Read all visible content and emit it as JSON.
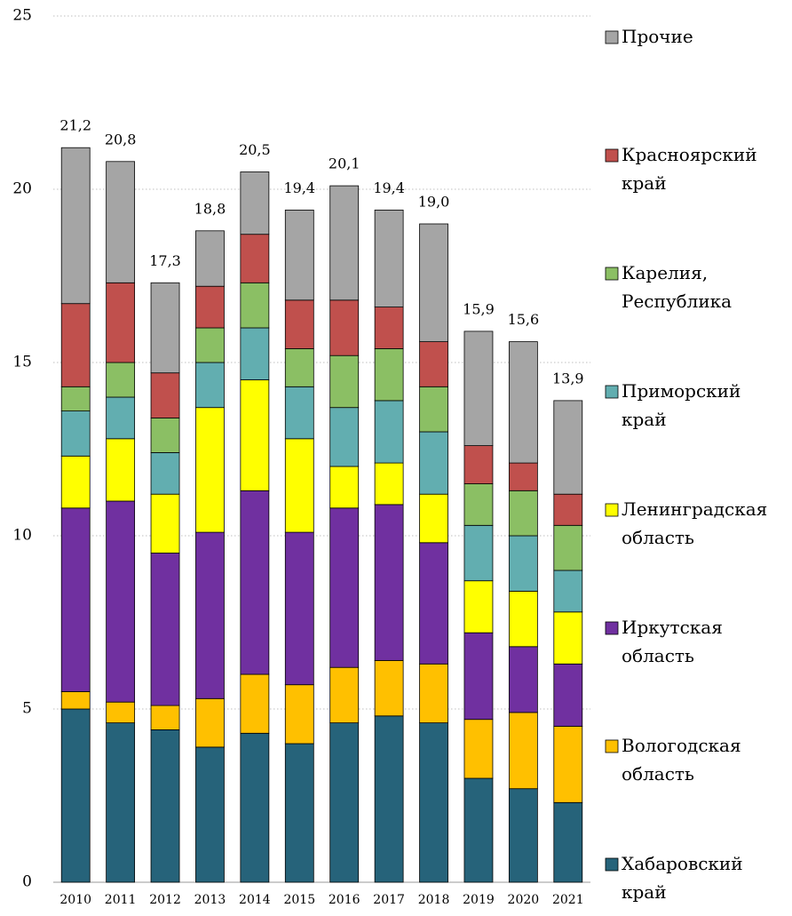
{
  "chart_data": {
    "type": "stacked_bar",
    "categories": [
      "2010",
      "2011",
      "2012",
      "2013",
      "2014",
      "2015",
      "2016",
      "2017",
      "2018",
      "2019",
      "2020",
      "2021"
    ],
    "series": [
      {
        "name": "Хабаровский край",
        "color": "#26637a",
        "values": [
          5.0,
          4.6,
          4.4,
          3.9,
          4.3,
          4.0,
          4.6,
          4.8,
          4.6,
          3.0,
          2.7,
          2.3
        ]
      },
      {
        "name": "Вологодская область",
        "color": "#ffc000",
        "values": [
          0.5,
          0.6,
          0.7,
          1.4,
          1.7,
          1.7,
          1.6,
          1.6,
          1.7,
          1.7,
          2.2,
          2.2
        ]
      },
      {
        "name": "Иркутская область",
        "color": "#7030a0",
        "values": [
          5.3,
          5.8,
          4.4,
          4.8,
          5.3,
          4.4,
          4.6,
          4.5,
          3.5,
          2.5,
          1.9,
          1.8
        ]
      },
      {
        "name": "Ленинградская область",
        "color": "#ffff00",
        "values": [
          1.5,
          1.8,
          1.7,
          3.6,
          3.2,
          2.7,
          1.2,
          1.2,
          1.4,
          1.5,
          1.6,
          1.5
        ]
      },
      {
        "name": "Приморский край",
        "color": "#62aeb0",
        "values": [
          1.3,
          1.2,
          1.2,
          1.3,
          1.5,
          1.5,
          1.7,
          1.8,
          1.8,
          1.6,
          1.6,
          1.2
        ]
      },
      {
        "name": "Карелия, Республика",
        "color": "#8bbf64",
        "values": [
          0.7,
          1.0,
          1.0,
          1.0,
          1.3,
          1.1,
          1.5,
          1.5,
          1.3,
          1.2,
          1.3,
          1.3
        ]
      },
      {
        "name": "Красноярский край",
        "color": "#c0504d",
        "values": [
          2.4,
          2.3,
          1.3,
          1.2,
          1.4,
          1.4,
          1.6,
          1.2,
          1.3,
          1.1,
          0.8,
          0.9
        ]
      },
      {
        "name": "Прочие",
        "color": "#a5a5a5",
        "values": [
          4.5,
          3.5,
          2.6,
          1.6,
          1.8,
          2.6,
          3.3,
          2.8,
          3.4,
          3.3,
          3.5,
          2.7
        ]
      }
    ],
    "totals": [
      21.2,
      20.8,
      17.3,
      18.8,
      20.5,
      19.4,
      20.1,
      19.4,
      19.0,
      15.9,
      15.6,
      13.9
    ],
    "total_labels": [
      "21,2",
      "20,8",
      "17,3",
      "18,8",
      "20,5",
      "19,4",
      "20,1",
      "19,4",
      "19,0",
      "15,9",
      "15,6",
      "13,9"
    ],
    "ylim": [
      0,
      25
    ],
    "yticks": [
      0,
      5,
      10,
      15,
      20,
      25
    ],
    "grid": true,
    "legend": "right"
  }
}
